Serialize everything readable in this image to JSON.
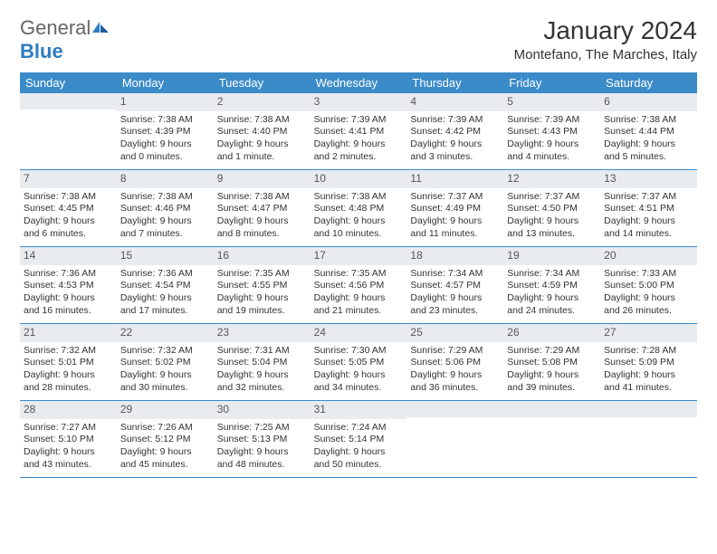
{
  "brand": {
    "part1": "General",
    "part2": "Blue"
  },
  "title": "January 2024",
  "location": "Montefano, The Marches, Italy",
  "colors": {
    "header_bg": "#3b8bc9",
    "header_text": "#ffffff",
    "daynum_bg": "#e9ecef",
    "week_border": "#3b8bc9",
    "body_text": "#333333",
    "background": "#ffffff"
  },
  "day_labels": [
    "Sunday",
    "Monday",
    "Tuesday",
    "Wednesday",
    "Thursday",
    "Friday",
    "Saturday"
  ],
  "weeks": [
    [
      {
        "day": "",
        "sunrise": "",
        "sunset": "",
        "daylight1": "",
        "daylight2": ""
      },
      {
        "day": "1",
        "sunrise": "Sunrise: 7:38 AM",
        "sunset": "Sunset: 4:39 PM",
        "daylight1": "Daylight: 9 hours",
        "daylight2": "and 0 minutes."
      },
      {
        "day": "2",
        "sunrise": "Sunrise: 7:38 AM",
        "sunset": "Sunset: 4:40 PM",
        "daylight1": "Daylight: 9 hours",
        "daylight2": "and 1 minute."
      },
      {
        "day": "3",
        "sunrise": "Sunrise: 7:39 AM",
        "sunset": "Sunset: 4:41 PM",
        "daylight1": "Daylight: 9 hours",
        "daylight2": "and 2 minutes."
      },
      {
        "day": "4",
        "sunrise": "Sunrise: 7:39 AM",
        "sunset": "Sunset: 4:42 PM",
        "daylight1": "Daylight: 9 hours",
        "daylight2": "and 3 minutes."
      },
      {
        "day": "5",
        "sunrise": "Sunrise: 7:39 AM",
        "sunset": "Sunset: 4:43 PM",
        "daylight1": "Daylight: 9 hours",
        "daylight2": "and 4 minutes."
      },
      {
        "day": "6",
        "sunrise": "Sunrise: 7:38 AM",
        "sunset": "Sunset: 4:44 PM",
        "daylight1": "Daylight: 9 hours",
        "daylight2": "and 5 minutes."
      }
    ],
    [
      {
        "day": "7",
        "sunrise": "Sunrise: 7:38 AM",
        "sunset": "Sunset: 4:45 PM",
        "daylight1": "Daylight: 9 hours",
        "daylight2": "and 6 minutes."
      },
      {
        "day": "8",
        "sunrise": "Sunrise: 7:38 AM",
        "sunset": "Sunset: 4:46 PM",
        "daylight1": "Daylight: 9 hours",
        "daylight2": "and 7 minutes."
      },
      {
        "day": "9",
        "sunrise": "Sunrise: 7:38 AM",
        "sunset": "Sunset: 4:47 PM",
        "daylight1": "Daylight: 9 hours",
        "daylight2": "and 8 minutes."
      },
      {
        "day": "10",
        "sunrise": "Sunrise: 7:38 AM",
        "sunset": "Sunset: 4:48 PM",
        "daylight1": "Daylight: 9 hours",
        "daylight2": "and 10 minutes."
      },
      {
        "day": "11",
        "sunrise": "Sunrise: 7:37 AM",
        "sunset": "Sunset: 4:49 PM",
        "daylight1": "Daylight: 9 hours",
        "daylight2": "and 11 minutes."
      },
      {
        "day": "12",
        "sunrise": "Sunrise: 7:37 AM",
        "sunset": "Sunset: 4:50 PM",
        "daylight1": "Daylight: 9 hours",
        "daylight2": "and 13 minutes."
      },
      {
        "day": "13",
        "sunrise": "Sunrise: 7:37 AM",
        "sunset": "Sunset: 4:51 PM",
        "daylight1": "Daylight: 9 hours",
        "daylight2": "and 14 minutes."
      }
    ],
    [
      {
        "day": "14",
        "sunrise": "Sunrise: 7:36 AM",
        "sunset": "Sunset: 4:53 PM",
        "daylight1": "Daylight: 9 hours",
        "daylight2": "and 16 minutes."
      },
      {
        "day": "15",
        "sunrise": "Sunrise: 7:36 AM",
        "sunset": "Sunset: 4:54 PM",
        "daylight1": "Daylight: 9 hours",
        "daylight2": "and 17 minutes."
      },
      {
        "day": "16",
        "sunrise": "Sunrise: 7:35 AM",
        "sunset": "Sunset: 4:55 PM",
        "daylight1": "Daylight: 9 hours",
        "daylight2": "and 19 minutes."
      },
      {
        "day": "17",
        "sunrise": "Sunrise: 7:35 AM",
        "sunset": "Sunset: 4:56 PM",
        "daylight1": "Daylight: 9 hours",
        "daylight2": "and 21 minutes."
      },
      {
        "day": "18",
        "sunrise": "Sunrise: 7:34 AM",
        "sunset": "Sunset: 4:57 PM",
        "daylight1": "Daylight: 9 hours",
        "daylight2": "and 23 minutes."
      },
      {
        "day": "19",
        "sunrise": "Sunrise: 7:34 AM",
        "sunset": "Sunset: 4:59 PM",
        "daylight1": "Daylight: 9 hours",
        "daylight2": "and 24 minutes."
      },
      {
        "day": "20",
        "sunrise": "Sunrise: 7:33 AM",
        "sunset": "Sunset: 5:00 PM",
        "daylight1": "Daylight: 9 hours",
        "daylight2": "and 26 minutes."
      }
    ],
    [
      {
        "day": "21",
        "sunrise": "Sunrise: 7:32 AM",
        "sunset": "Sunset: 5:01 PM",
        "daylight1": "Daylight: 9 hours",
        "daylight2": "and 28 minutes."
      },
      {
        "day": "22",
        "sunrise": "Sunrise: 7:32 AM",
        "sunset": "Sunset: 5:02 PM",
        "daylight1": "Daylight: 9 hours",
        "daylight2": "and 30 minutes."
      },
      {
        "day": "23",
        "sunrise": "Sunrise: 7:31 AM",
        "sunset": "Sunset: 5:04 PM",
        "daylight1": "Daylight: 9 hours",
        "daylight2": "and 32 minutes."
      },
      {
        "day": "24",
        "sunrise": "Sunrise: 7:30 AM",
        "sunset": "Sunset: 5:05 PM",
        "daylight1": "Daylight: 9 hours",
        "daylight2": "and 34 minutes."
      },
      {
        "day": "25",
        "sunrise": "Sunrise: 7:29 AM",
        "sunset": "Sunset: 5:06 PM",
        "daylight1": "Daylight: 9 hours",
        "daylight2": "and 36 minutes."
      },
      {
        "day": "26",
        "sunrise": "Sunrise: 7:29 AM",
        "sunset": "Sunset: 5:08 PM",
        "daylight1": "Daylight: 9 hours",
        "daylight2": "and 39 minutes."
      },
      {
        "day": "27",
        "sunrise": "Sunrise: 7:28 AM",
        "sunset": "Sunset: 5:09 PM",
        "daylight1": "Daylight: 9 hours",
        "daylight2": "and 41 minutes."
      }
    ],
    [
      {
        "day": "28",
        "sunrise": "Sunrise: 7:27 AM",
        "sunset": "Sunset: 5:10 PM",
        "daylight1": "Daylight: 9 hours",
        "daylight2": "and 43 minutes."
      },
      {
        "day": "29",
        "sunrise": "Sunrise: 7:26 AM",
        "sunset": "Sunset: 5:12 PM",
        "daylight1": "Daylight: 9 hours",
        "daylight2": "and 45 minutes."
      },
      {
        "day": "30",
        "sunrise": "Sunrise: 7:25 AM",
        "sunset": "Sunset: 5:13 PM",
        "daylight1": "Daylight: 9 hours",
        "daylight2": "and 48 minutes."
      },
      {
        "day": "31",
        "sunrise": "Sunrise: 7:24 AM",
        "sunset": "Sunset: 5:14 PM",
        "daylight1": "Daylight: 9 hours",
        "daylight2": "and 50 minutes."
      },
      {
        "day": "",
        "sunrise": "",
        "sunset": "",
        "daylight1": "",
        "daylight2": ""
      },
      {
        "day": "",
        "sunrise": "",
        "sunset": "",
        "daylight1": "",
        "daylight2": ""
      },
      {
        "day": "",
        "sunrise": "",
        "sunset": "",
        "daylight1": "",
        "daylight2": ""
      }
    ]
  ]
}
